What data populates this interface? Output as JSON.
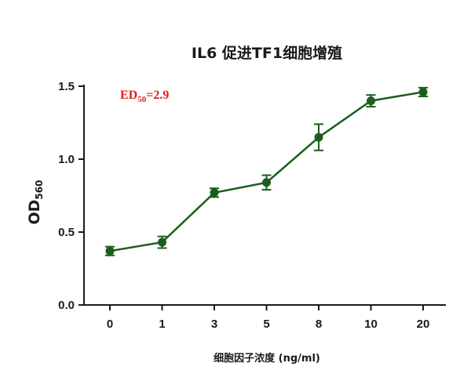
{
  "chart_data": {
    "type": "line",
    "title": "IL6 促进TF1细胞增殖",
    "xlabel": "细胞因子浓度 (ng/ml)",
    "ylabel": {
      "main": "OD",
      "sub": "560"
    },
    "categories": [
      "0",
      "1",
      "3",
      "5",
      "8",
      "10",
      "20"
    ],
    "ylim": [
      0,
      1.5
    ],
    "yticks": [
      "0.0",
      "0.5",
      "1.0",
      "1.5"
    ],
    "grid": false,
    "series": [
      {
        "values": [
          0.37,
          0.43,
          0.77,
          0.84,
          1.15,
          1.4,
          1.46
        ],
        "errors": [
          0.03,
          0.04,
          0.03,
          0.05,
          0.09,
          0.04,
          0.03
        ]
      }
    ],
    "annotation": {
      "main": "ED",
      "sub": "50",
      "rest": "=2.9"
    },
    "colors": {
      "series": "#1b5e1b",
      "axis": "#1a1a1a",
      "annotation": "#e02020"
    }
  }
}
